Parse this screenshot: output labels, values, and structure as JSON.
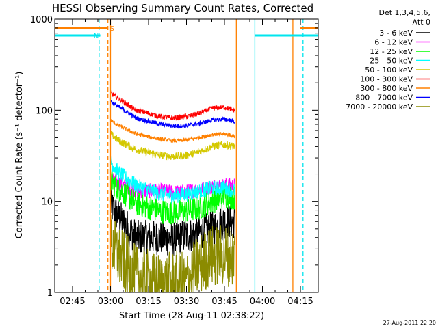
{
  "chart_data": {
    "type": "line",
    "title": "HESSI Observing Summary Count Rates, Corrected",
    "xlabel": "Start Time (28-Aug-11 02:38:22)",
    "ylabel": "Corrected Count Rate (s⁻¹ detector⁻¹)",
    "yscale": "log",
    "ylim": [
      1,
      1000
    ],
    "xlim_minutes": [
      2.633,
      4.367
    ],
    "xlim": [
      "02:38",
      "04:22"
    ],
    "x_ticks": [
      "02:45",
      "03:00",
      "03:15",
      "03:30",
      "03:45",
      "04:00",
      "04:15"
    ],
    "y_ticks": [
      "1",
      "10",
      "100",
      "1000"
    ],
    "legend_header": [
      "Det 1,3,4,5,6,",
      "Att 0"
    ],
    "legend_position": "right",
    "timestamp": "27-Aug-2011 22:20",
    "flags": [
      {
        "label": "S",
        "color": "#ff8000",
        "x_minutes": [
          [
            2.633,
            2.983
          ],
          [
            4.25,
            4.367
          ]
        ],
        "y": 800
      },
      {
        "label": "N",
        "color": "#00e5ee",
        "x_minutes": [
          [
            2.633,
            2.933
          ],
          [
            3.95,
            4.367
          ]
        ],
        "y": 660
      }
    ],
    "marker_lines": [
      {
        "color": "#00e5ee",
        "style": "dashed",
        "x_minutes": 2.925
      },
      {
        "color": "#ff8000",
        "style": "dashed",
        "x_minutes": 2.983
      },
      {
        "color": "#ff8000",
        "style": "solid",
        "x_minutes": 3.0
      },
      {
        "color": "#ff8000",
        "style": "solid",
        "x_minutes": 3.828
      },
      {
        "color": "#00e5ee",
        "style": "solid",
        "x_minutes": 3.95
      },
      {
        "color": "#ff8000",
        "style": "solid",
        "x_minutes": 4.2
      },
      {
        "color": "#00e5ee",
        "style": "dashed",
        "x_minutes": 4.267
      }
    ],
    "time_knots_minutes": [
      3.0,
      3.05,
      3.167,
      3.333,
      3.417,
      3.5,
      3.583,
      3.667,
      3.75,
      3.817
    ],
    "series": [
      {
        "name": "3 - 6 keV",
        "color": "#000000",
        "noise": 0.28,
        "values": [
          9,
          7,
          4,
          4,
          3.8,
          4.2,
          4.5,
          5,
          6,
          6
        ]
      },
      {
        "name": "6 - 12 keV",
        "color": "#ff00ff",
        "noise": 0.12,
        "values": [
          18,
          16,
          13,
          13,
          12.5,
          12.8,
          13.5,
          14.5,
          15,
          15
        ]
      },
      {
        "name": "12 - 25 keV",
        "color": "#00ff00",
        "noise": 0.2,
        "values": [
          17,
          14,
          9.5,
          7.8,
          7.5,
          7.8,
          8.5,
          10,
          11.5,
          11
        ]
      },
      {
        "name": "25 - 50 keV",
        "color": "#00ffff",
        "noise": 0.12,
        "values": [
          27,
          21,
          15,
          12,
          11.5,
          12,
          13,
          14,
          14,
          13
        ]
      },
      {
        "name": "50 - 100 keV",
        "color": "#d4c800",
        "noise": 0.06,
        "values": [
          55,
          47,
          37,
          32,
          31,
          32,
          35,
          40,
          42,
          40
        ]
      },
      {
        "name": "100 - 300 keV",
        "color": "#ff0000",
        "noise": 0.04,
        "values": [
          155,
          135,
          100,
          85,
          82,
          85,
          92,
          105,
          108,
          100
        ]
      },
      {
        "name": "300 - 800 keV",
        "color": "#ff8000",
        "noise": 0.03,
        "values": [
          78,
          68,
          55,
          48,
          46,
          47,
          50,
          54,
          55,
          52
        ]
      },
      {
        "name": "800 - 7000 keV",
        "color": "#0000ff",
        "noise": 0.035,
        "values": [
          125,
          110,
          82,
          70,
          67,
          68,
          71,
          78,
          80,
          75
        ]
      },
      {
        "name": "7000 - 20000 keV",
        "color": "#8b8b00",
        "noise": 0.5,
        "values": [
          3.5,
          2.5,
          1.5,
          1.2,
          1.3,
          1.3,
          2,
          2.5,
          2.6,
          2.5
        ]
      }
    ]
  }
}
